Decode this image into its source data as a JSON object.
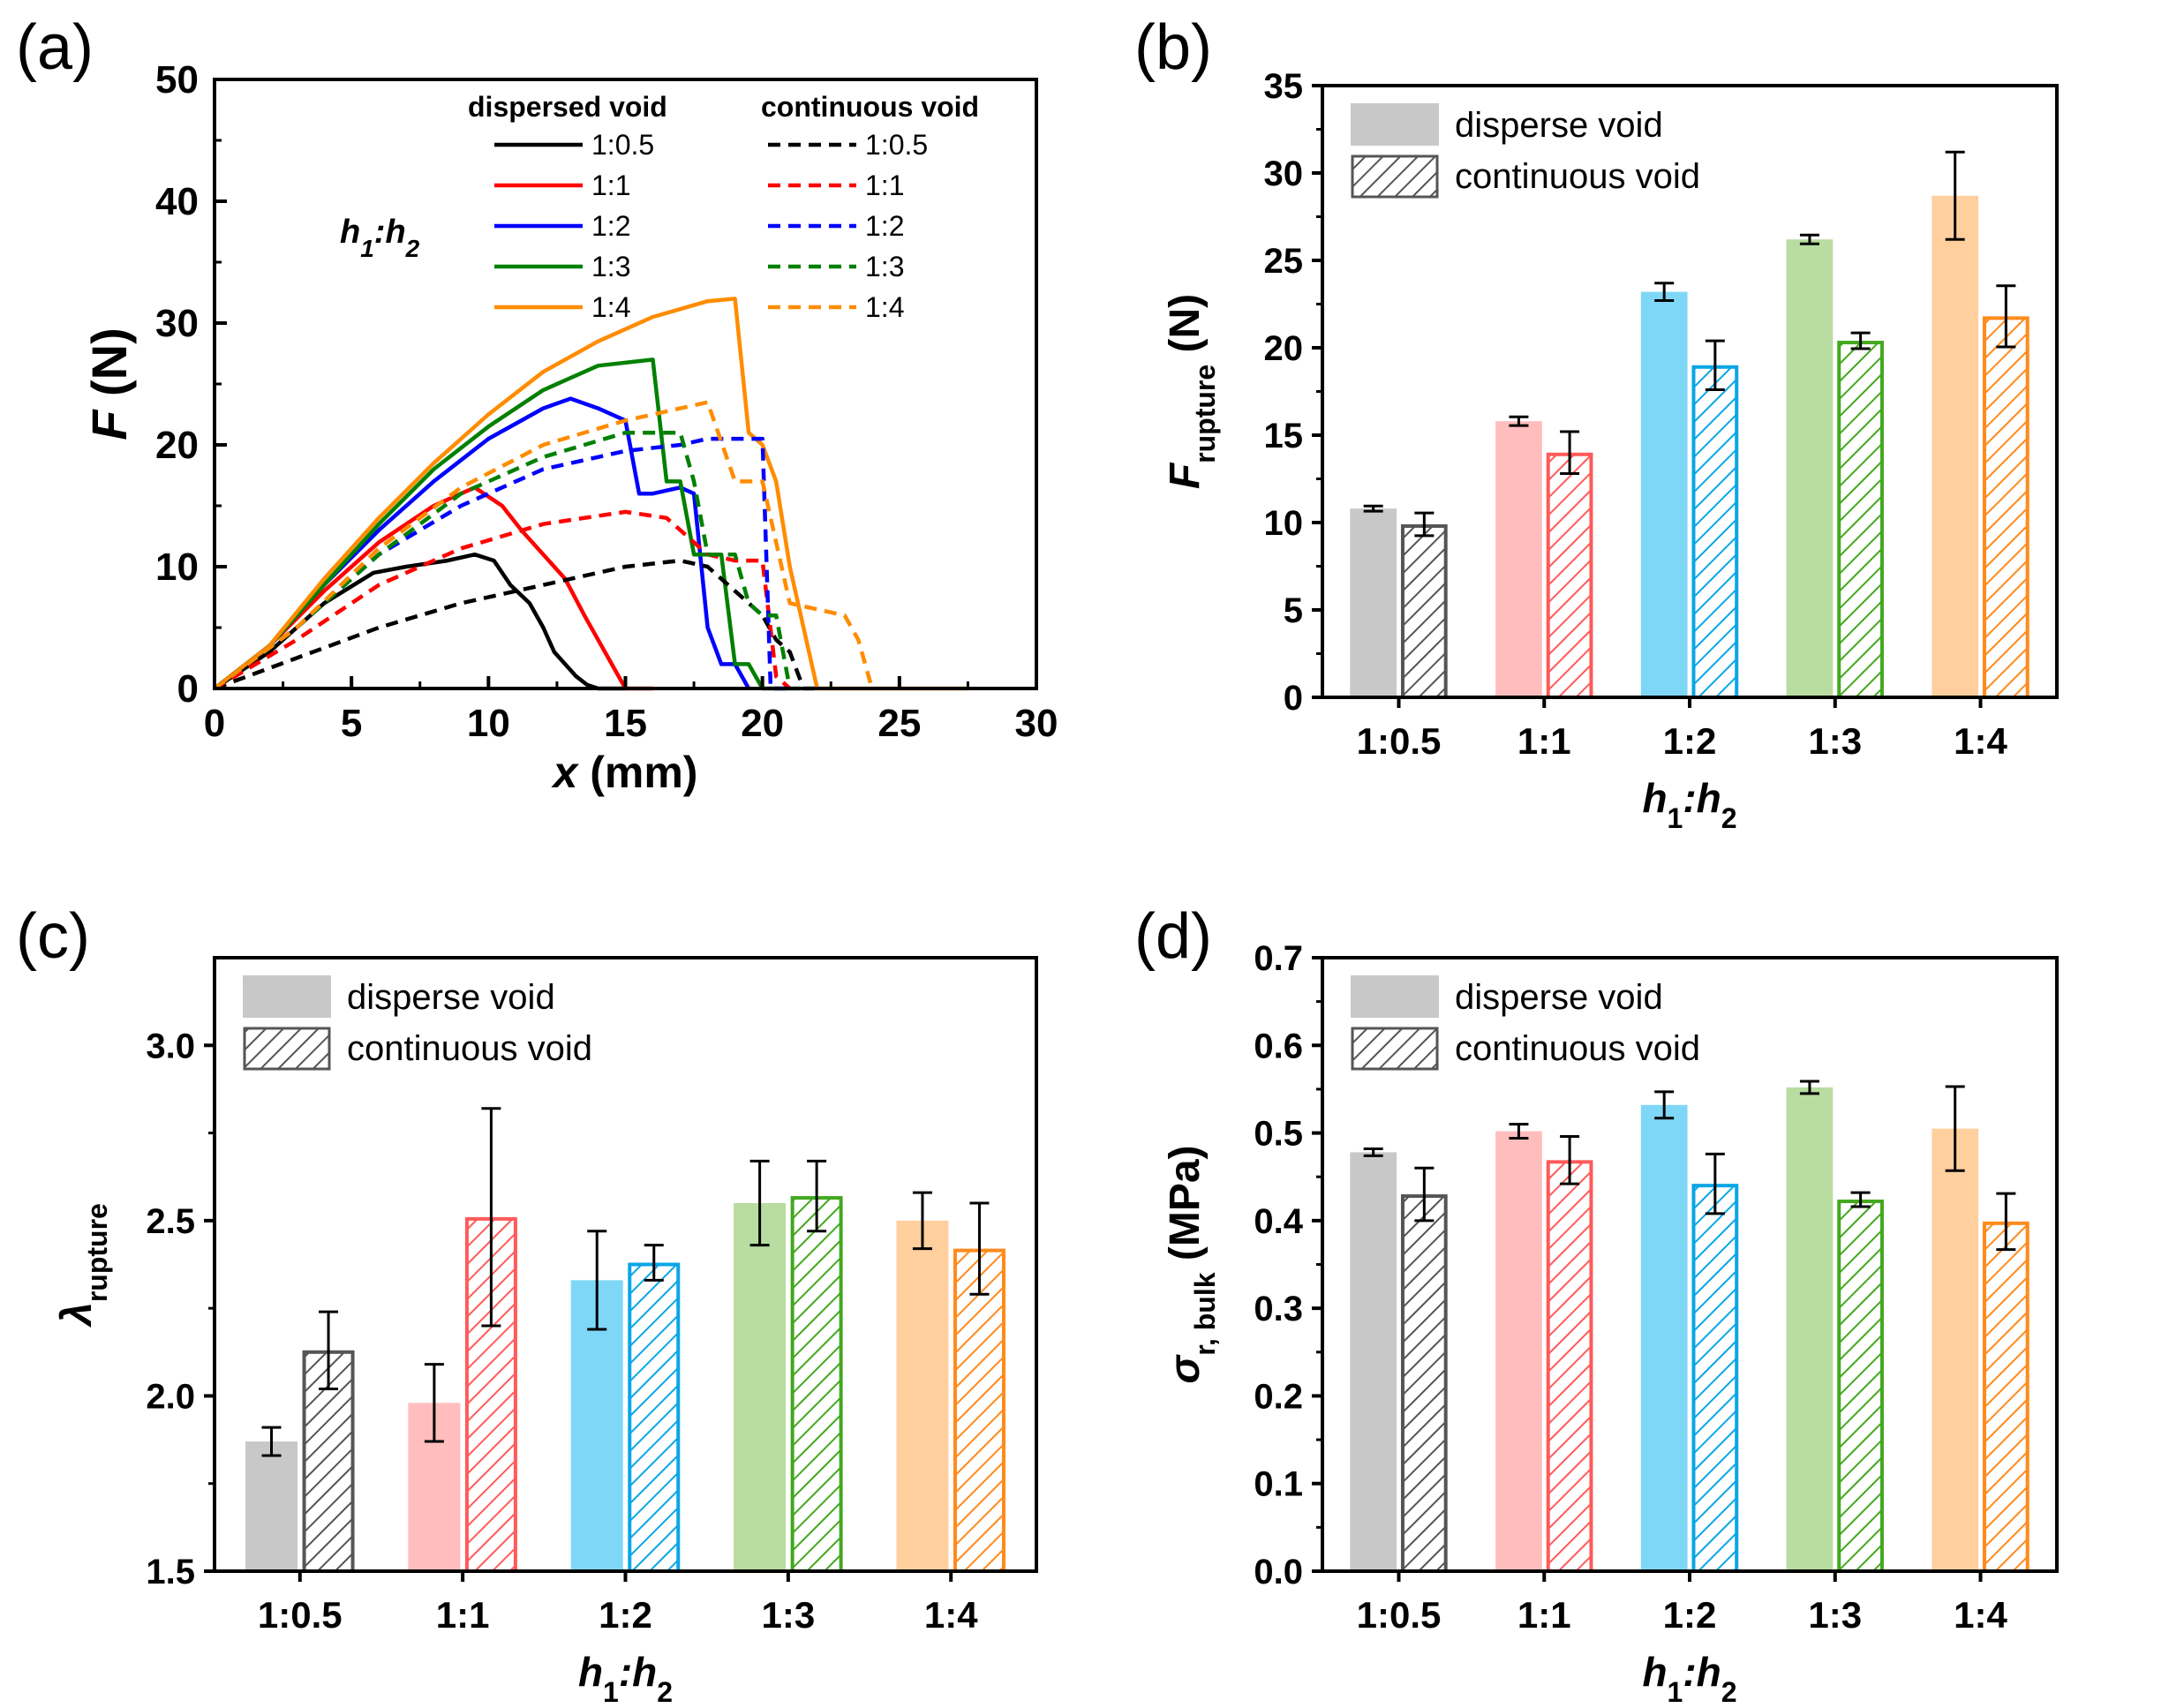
{
  "chart_data": [
    {
      "panel": "(a)",
      "type": "line",
      "xlabel": "x (mm)",
      "ylabel": "F (N)",
      "xlim": [
        0,
        30
      ],
      "ylim": [
        0,
        50
      ],
      "xticks": [
        0,
        5,
        10,
        15,
        20,
        25,
        30
      ],
      "yticks": [
        0,
        10,
        20,
        30,
        40,
        50
      ],
      "legend_title": "h1:h2",
      "legend_title_parts": [
        "h",
        "1",
        ":h",
        "2"
      ],
      "legend_header_solid": "dispersed void",
      "legend_header_dashed": "continuous void",
      "series": [
        {
          "name": "1:0.5",
          "group": "dispersed void",
          "color": "#000000",
          "dash": false,
          "x": [
            0,
            2,
            4,
            5.8,
            7,
            8.5,
            9.5,
            10.2,
            10.8,
            11.5,
            12,
            12.4,
            12.8,
            13.2,
            13.6,
            14,
            15
          ],
          "y": [
            0,
            3,
            7,
            9.5,
            10,
            10.5,
            11,
            10.5,
            8.5,
            7,
            5,
            3,
            2,
            1,
            0.3,
            0,
            0
          ]
        },
        {
          "name": "1:1",
          "group": "dispersed void",
          "color": "#ff0000",
          "dash": false,
          "x": [
            0,
            2,
            4,
            6,
            8,
            9.5,
            10.5,
            11.2,
            12,
            12.8,
            13.5,
            14,
            14.5,
            15,
            16
          ],
          "y": [
            0,
            3.5,
            8,
            12,
            15,
            16.5,
            15,
            13,
            11,
            9,
            6,
            4,
            2,
            0,
            0
          ]
        },
        {
          "name": "1:2",
          "group": "dispersed void",
          "color": "#0000ff",
          "dash": false,
          "x": [
            0,
            2,
            4,
            6,
            8,
            10,
            12,
            13,
            14,
            15,
            15.5,
            16,
            17,
            17.5,
            18,
            18.5,
            19,
            19.5
          ],
          "y": [
            0,
            3.5,
            8.5,
            13,
            17,
            20.5,
            23,
            23.8,
            23,
            22,
            16,
            16,
            16.5,
            16,
            5,
            2,
            2,
            0
          ]
        },
        {
          "name": "1:3",
          "group": "dispersed void",
          "color": "#008000",
          "dash": false,
          "x": [
            0,
            2,
            4,
            6,
            8,
            10,
            12,
            14,
            16,
            16.5,
            17,
            17.5,
            18,
            18.5,
            19,
            19.5,
            20,
            21
          ],
          "y": [
            0,
            3.5,
            8.5,
            13.5,
            18,
            21.5,
            24.5,
            26.5,
            27,
            17,
            17,
            11,
            11,
            11,
            2,
            2,
            0,
            0
          ]
        },
        {
          "name": "1:4",
          "group": "dispersed void",
          "color": "#ff8c00",
          "dash": false,
          "x": [
            0,
            2,
            4,
            6,
            8,
            10,
            12,
            14,
            16,
            18,
            19,
            19.5,
            20,
            20.5,
            21,
            21.5,
            22,
            27.5
          ],
          "y": [
            0,
            3.5,
            9,
            14,
            18.5,
            22.5,
            26,
            28.5,
            30.5,
            31.8,
            32,
            21,
            20,
            17,
            10,
            5,
            0,
            0
          ]
        },
        {
          "name": "1:0.5",
          "group": "continuous void",
          "color": "#000000",
          "dash": true,
          "x": [
            0,
            3,
            6,
            9,
            12,
            15,
            17,
            18,
            19,
            20,
            20.5,
            21,
            21.5,
            22
          ],
          "y": [
            0,
            2.5,
            5,
            7,
            8.5,
            10,
            10.5,
            10,
            8,
            6,
            4,
            3,
            0,
            0
          ]
        },
        {
          "name": "1:1",
          "group": "continuous void",
          "color": "#ff0000",
          "dash": true,
          "x": [
            0,
            3,
            6,
            9,
            12,
            15,
            16.5,
            17.5,
            18,
            19,
            20,
            20.5,
            21
          ],
          "y": [
            0,
            4,
            8.5,
            11.5,
            13.5,
            14.5,
            14,
            12,
            11,
            10.5,
            10.5,
            1,
            0
          ]
        },
        {
          "name": "1:2",
          "group": "continuous void",
          "color": "#0000ff",
          "dash": true,
          "x": [
            0,
            3,
            6,
            9,
            12,
            15,
            17,
            18,
            19,
            20,
            20.3,
            21
          ],
          "y": [
            0,
            5,
            11,
            15,
            18,
            19.5,
            20,
            20.5,
            20.5,
            20.5,
            0,
            0
          ]
        },
        {
          "name": "1:3",
          "group": "continuous void",
          "color": "#008000",
          "dash": true,
          "x": [
            0,
            3,
            6,
            9,
            12,
            15,
            17,
            17.5,
            18,
            19,
            19.5,
            20,
            20.5,
            21,
            21.5
          ],
          "y": [
            0,
            5,
            11,
            16,
            19,
            21,
            21,
            17,
            11,
            11,
            7,
            6,
            6,
            0,
            0
          ]
        },
        {
          "name": "1:4",
          "group": "continuous void",
          "color": "#ff8c00",
          "dash": true,
          "x": [
            0,
            3,
            6,
            9,
            12,
            15,
            17,
            18,
            19,
            20,
            21,
            22,
            23,
            23.5,
            24
          ],
          "y": [
            0,
            5,
            11.5,
            16.5,
            20,
            22,
            23,
            23.5,
            17,
            17,
            7,
            6.5,
            6,
            4,
            0
          ]
        }
      ]
    },
    {
      "panel": "(b)",
      "type": "bar",
      "categories": [
        "1:0.5",
        "1:1",
        "1:2",
        "1:3",
        "1:4"
      ],
      "xlabel": "h1:h2",
      "xlabel_parts": [
        "h",
        "1",
        ":h",
        "2"
      ],
      "ylabel": "F rupture (N)",
      "ylabel_parts": [
        "F",
        "rupture",
        "(N)"
      ],
      "ylim": [
        0,
        35
      ],
      "yticks": [
        0,
        5,
        10,
        15,
        20,
        25,
        30,
        35
      ],
      "legend": [
        "disperse void",
        "continuous void"
      ],
      "colors": [
        "#c8c8c8",
        "#ffbdbd",
        "#7fd7f7",
        "#b9dca0",
        "#ffcf9e"
      ],
      "edge_colors": [
        "#555555",
        "#ff5a5a",
        "#0aa6e6",
        "#43a81f",
        "#ff8a1c"
      ],
      "series": [
        {
          "name": "disperse void",
          "values": [
            10.8,
            15.8,
            23.2,
            26.2,
            28.7
          ],
          "errors": [
            0.15,
            0.25,
            0.5,
            0.25,
            2.5
          ]
        },
        {
          "name": "continuous void",
          "values": [
            9.9,
            14.0,
            19.0,
            20.4,
            21.8
          ],
          "errors": [
            0.65,
            1.2,
            1.4,
            0.45,
            1.75
          ]
        }
      ]
    },
    {
      "panel": "(c)",
      "type": "bar",
      "categories": [
        "1:0.5",
        "1:1",
        "1:2",
        "1:3",
        "1:4"
      ],
      "xlabel": "h1:h2",
      "xlabel_parts": [
        "h",
        "1",
        ":h",
        "2"
      ],
      "ylabel": "λrupture",
      "ylabel_parts": [
        "λ",
        "rupture"
      ],
      "ylim": [
        1.5,
        3.25
      ],
      "yticks": [
        1.5,
        2.0,
        2.5,
        3.0
      ],
      "legend": [
        "disperse void",
        "continuous void"
      ],
      "colors": [
        "#c8c8c8",
        "#ffbdbd",
        "#7fd7f7",
        "#b9dca0",
        "#ffcf9e"
      ],
      "edge_colors": [
        "#555555",
        "#ff5a5a",
        "#0aa6e6",
        "#43a81f",
        "#ff8a1c"
      ],
      "series": [
        {
          "name": "disperse void",
          "values": [
            1.87,
            1.98,
            2.33,
            2.55,
            2.5
          ],
          "errors": [
            0.04,
            0.11,
            0.14,
            0.12,
            0.08
          ]
        },
        {
          "name": "continuous void",
          "values": [
            2.13,
            2.51,
            2.38,
            2.57,
            2.42
          ],
          "errors": [
            0.11,
            0.31,
            0.05,
            0.1,
            0.13
          ]
        }
      ]
    },
    {
      "panel": "(d)",
      "type": "bar",
      "categories": [
        "1:0.5",
        "1:1",
        "1:2",
        "1:3",
        "1:4"
      ],
      "xlabel": "h1:h2",
      "xlabel_parts": [
        "h",
        "1",
        ":h",
        "2"
      ],
      "ylabel": "σr, bulk (MPa)",
      "ylabel_parts": [
        "σ",
        "r, bulk",
        "(MPa)"
      ],
      "ylim": [
        0,
        0.7
      ],
      "yticks": [
        0.0,
        0.1,
        0.2,
        0.3,
        0.4,
        0.5,
        0.6,
        0.7
      ],
      "legend": [
        "disperse void",
        "continuous void"
      ],
      "colors": [
        "#c8c8c8",
        "#ffbdbd",
        "#7fd7f7",
        "#b9dca0",
        "#ffcf9e"
      ],
      "edge_colors": [
        "#555555",
        "#ff5a5a",
        "#0aa6e6",
        "#43a81f",
        "#ff8a1c"
      ],
      "series": [
        {
          "name": "disperse void",
          "values": [
            0.478,
            0.502,
            0.532,
            0.552,
            0.505
          ],
          "errors": [
            0.004,
            0.008,
            0.015,
            0.007,
            0.048
          ]
        },
        {
          "name": "continuous void",
          "values": [
            0.43,
            0.469,
            0.442,
            0.424,
            0.399
          ],
          "errors": [
            0.03,
            0.027,
            0.034,
            0.008,
            0.032
          ]
        }
      ]
    }
  ]
}
